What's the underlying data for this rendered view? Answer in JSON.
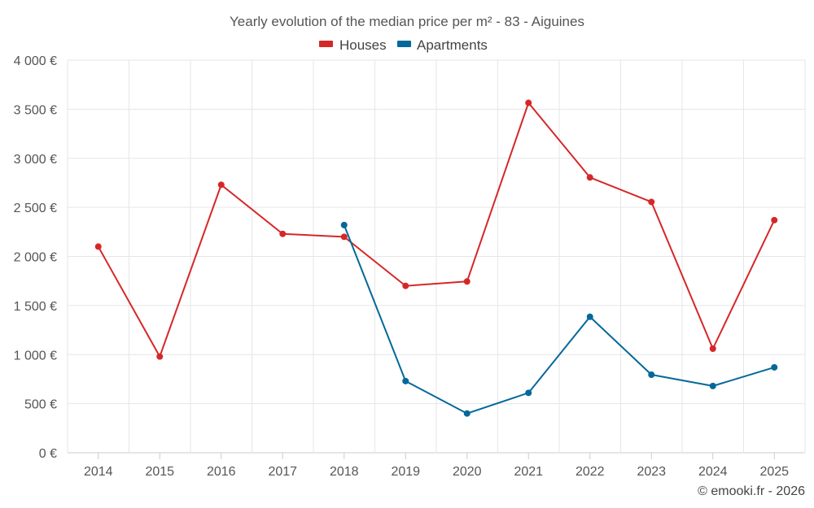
{
  "chart_data": {
    "type": "line",
    "title": "Yearly evolution of the median price per m² - 83 - Aiguines",
    "categories": [
      "2014",
      "2015",
      "2016",
      "2017",
      "2018",
      "2019",
      "2020",
      "2021",
      "2022",
      "2023",
      "2024",
      "2025"
    ],
    "ylim": [
      0,
      4000
    ],
    "yticks": [
      0,
      500,
      1000,
      1500,
      2000,
      2500,
      3000,
      3500,
      4000
    ],
    "ytick_labels": [
      "0 €",
      "500 €",
      "1 000 €",
      "1 500 €",
      "2 000 €",
      "2 500 €",
      "3 000 €",
      "3 500 €",
      "4 000 €"
    ],
    "grid": true,
    "legend_position": "top-center",
    "series": [
      {
        "name": "Houses",
        "color": "#d62728",
        "values": [
          2100,
          980,
          2730,
          2230,
          2200,
          1700,
          1745,
          3565,
          2805,
          2555,
          1060,
          2370
        ]
      },
      {
        "name": "Apartments",
        "color": "#03689a",
        "values": [
          null,
          null,
          null,
          null,
          2320,
          730,
          400,
          610,
          1385,
          795,
          680,
          870
        ]
      }
    ]
  },
  "credit": "© emooki.fr - 2026"
}
